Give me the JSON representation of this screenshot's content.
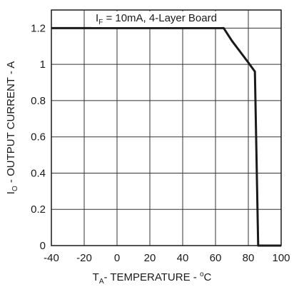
{
  "chart_data": {
    "type": "line",
    "annotation": {
      "prefix": "I",
      "subscript": "F",
      "text": " = 10mA, 4-Layer Board"
    },
    "xlabel": {
      "prefix": "T",
      "subscript": "A",
      "mid": "- TEMPERATURE - ",
      "superscript": "o",
      "suffix": "C"
    },
    "ylabel": {
      "prefix": "I",
      "subscript": "O",
      "text": " - OUTPUT CURRENT - A"
    },
    "xlim": [
      -40,
      100
    ],
    "ylim": [
      0,
      1.3
    ],
    "x_ticks": [
      -40,
      -20,
      0,
      20,
      40,
      60,
      80,
      100
    ],
    "y_ticks": [
      0,
      0.2,
      0.4,
      0.6,
      0.8,
      1,
      1.2
    ],
    "x_tick_labels": [
      "-40",
      "-20",
      "0",
      "20",
      "40",
      "60",
      "80",
      "100"
    ],
    "y_tick_labels": [
      "0",
      "0.2",
      "0.4",
      "0.6",
      "0.8",
      "1",
      "1.2"
    ],
    "grid": true,
    "series": [
      {
        "x": [
          -40,
          65,
          70,
          75,
          80,
          84,
          85,
          86,
          100
        ],
        "y": [
          1.2,
          1.2,
          1.13,
          1.07,
          1.01,
          0.96,
          0.48,
          0,
          0
        ]
      }
    ]
  }
}
